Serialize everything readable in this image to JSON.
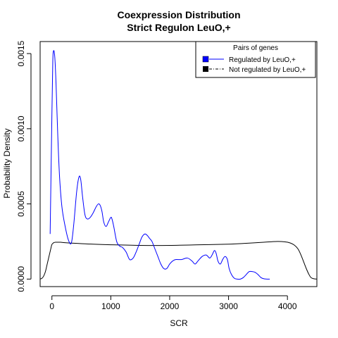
{
  "chart_data": {
    "type": "line",
    "title": "Coexpression Distribution",
    "subtitle": "Strict Regulon LeuO,+",
    "xlabel": "SCR",
    "ylabel": "Probability Density",
    "xlim": [
      -200,
      4500
    ],
    "ylim": [
      -5e-05,
      0.00158
    ],
    "xticks": [
      0,
      1000,
      2000,
      3000,
      4000
    ],
    "yticks": [
      0.0,
      0.0005,
      0.001,
      0.0015
    ],
    "ytick_labels": [
      "0.0000",
      "0.0005",
      "0.0010",
      "0.0015"
    ],
    "grid": false,
    "legend": {
      "title": "Pairs of genes",
      "placement": "top-right",
      "entries": [
        {
          "label": "Regulated by  LeuO,+",
          "color": "#0000ff",
          "line": "solid"
        },
        {
          "label": "Not regulated by  LeuO,+",
          "color": "#000000",
          "line": "dashed"
        }
      ]
    },
    "series": [
      {
        "name": "Regulated by  LeuO,+",
        "color": "#0000ff",
        "x": [
          -30,
          0,
          15,
          30,
          50,
          70,
          100,
          130,
          170,
          220,
          280,
          330,
          370,
          420,
          460,
          490,
          520,
          560,
          600,
          650,
          700,
          750,
          790,
          820,
          850,
          880,
          920,
          960,
          1000,
          1020,
          1050,
          1100,
          1150,
          1200,
          1260,
          1320,
          1380,
          1430,
          1480,
          1530,
          1580,
          1620,
          1660,
          1700,
          1750,
          1800,
          1850,
          1900,
          1950,
          2000,
          2050,
          2100,
          2200,
          2300,
          2380,
          2430,
          2480,
          2550,
          2620,
          2680,
          2720,
          2760,
          2790,
          2820,
          2860,
          2900,
          2940,
          2980,
          3010,
          3050,
          3100,
          3150,
          3200,
          3250,
          3300,
          3350,
          3400,
          3450,
          3500,
          3550,
          3600,
          3650,
          3700
        ],
        "y": [
          0.0003,
          0.0011,
          0.00145,
          0.00152,
          0.00147,
          0.0013,
          0.00095,
          0.00068,
          0.00048,
          0.00036,
          0.00026,
          0.00024,
          0.00036,
          0.00058,
          0.00068,
          0.00066,
          0.00055,
          0.00043,
          0.0004,
          0.00041,
          0.00044,
          0.00048,
          0.0005,
          0.00049,
          0.00045,
          0.00038,
          0.00035,
          0.00038,
          0.00041,
          0.0004,
          0.00035,
          0.00025,
          0.00022,
          0.00021,
          0.00018,
          0.00013,
          0.00014,
          0.00018,
          0.00023,
          0.00028,
          0.0003,
          0.00029,
          0.00027,
          0.00025,
          0.0002,
          0.00015,
          0.0001,
          7e-05,
          7e-05,
          0.0001,
          0.00012,
          0.00013,
          0.00013,
          0.00014,
          0.00012,
          0.0001,
          0.00012,
          0.00015,
          0.00016,
          0.00014,
          0.00016,
          0.00019,
          0.00017,
          0.00012,
          0.0001,
          0.00013,
          0.00015,
          0.00013,
          7e-05,
          3e-05,
          5e-06,
          0.0,
          0.0,
          1e-05,
          3e-05,
          5e-05,
          5e-05,
          4.5e-05,
          3e-05,
          1e-05,
          2e-06,
          0.0,
          0.0
        ]
      },
      {
        "name": "Not regulated by  LeuO,+",
        "color": "#000000",
        "x": [
          -200,
          -170,
          -140,
          -110,
          -80,
          -50,
          -20,
          0,
          30,
          60,
          100,
          150,
          200,
          300,
          500,
          700,
          1000,
          1500,
          2000,
          2500,
          3000,
          3300,
          3600,
          3800,
          3950,
          4050,
          4120,
          4180,
          4230,
          4280,
          4320,
          4360,
          4400,
          4450,
          4500
        ],
        "y": [
          0.0,
          5e-06,
          2e-05,
          5e-05,
          0.0001,
          0.00015,
          0.0002,
          0.00023,
          0.000242,
          0.000245,
          0.000245,
          0.000245,
          0.000243,
          0.00024,
          0.000236,
          0.000232,
          0.000228,
          0.000224,
          0.000224,
          0.000228,
          0.000232,
          0.000238,
          0.000245,
          0.00025,
          0.000248,
          0.00024,
          0.000225,
          0.0002,
          0.00016,
          0.00011,
          7e-05,
          3.5e-05,
          1e-05,
          2e-06,
          0.0
        ]
      }
    ]
  }
}
